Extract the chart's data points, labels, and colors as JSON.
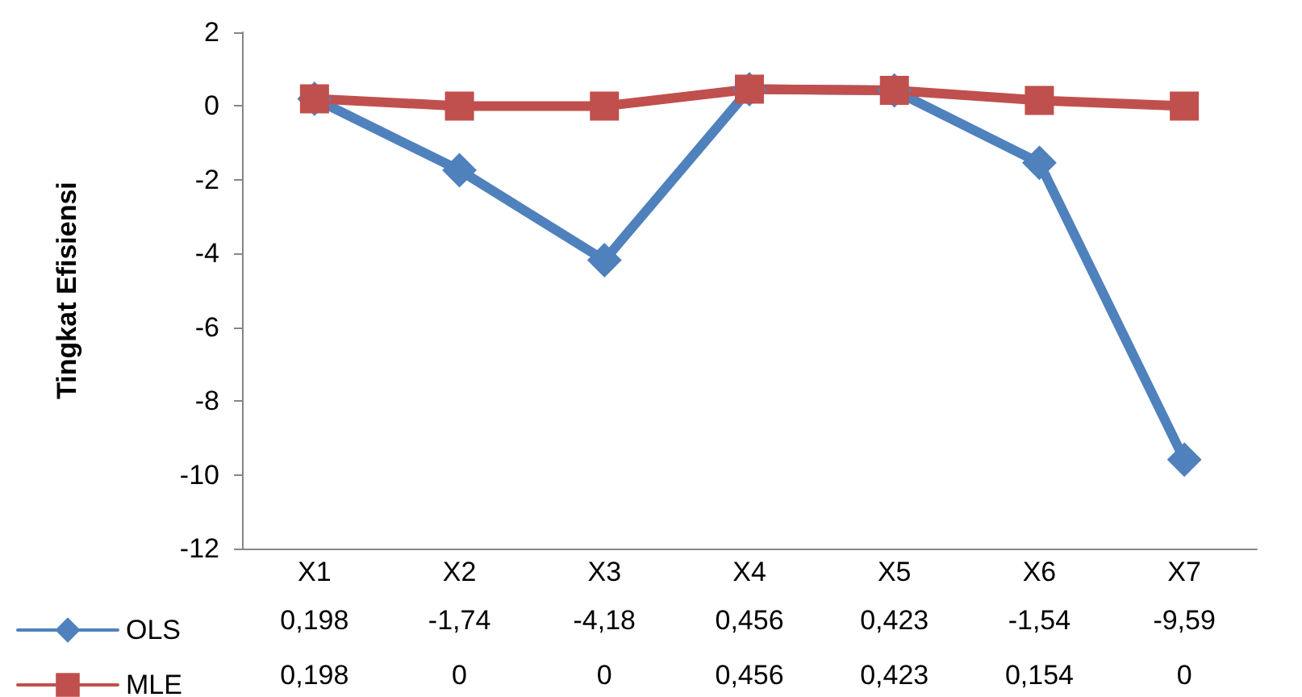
{
  "chart_data": {
    "type": "line",
    "ylabel": "Tingkat Efisiensi",
    "categories": [
      "X1",
      "X2",
      "X3",
      "X4",
      "X5",
      "X6",
      "X7"
    ],
    "series": [
      {
        "name": "OLS",
        "color": "#4f81bd",
        "marker": "diamond",
        "values": [
          0.198,
          -1.74,
          -4.18,
          0.456,
          0.423,
          -1.54,
          -9.59
        ],
        "value_labels": [
          "0,198",
          "-1,74",
          "-4,18",
          "0,456",
          "0,423",
          "-1,54",
          "-9,59"
        ]
      },
      {
        "name": "MLE",
        "color": "#c0504d",
        "marker": "square",
        "values": [
          0.198,
          0,
          0,
          0.456,
          0.423,
          0.154,
          0
        ],
        "value_labels": [
          "0,198",
          "0",
          "0",
          "0,456",
          "0,423",
          "0,154",
          "0"
        ]
      }
    ],
    "ylim": [
      -12,
      2
    ],
    "yticks": [
      -12,
      -10,
      -8,
      -6,
      -4,
      -2,
      0,
      2
    ],
    "grid": false,
    "legend": "bottom",
    "line_style": "solid"
  }
}
